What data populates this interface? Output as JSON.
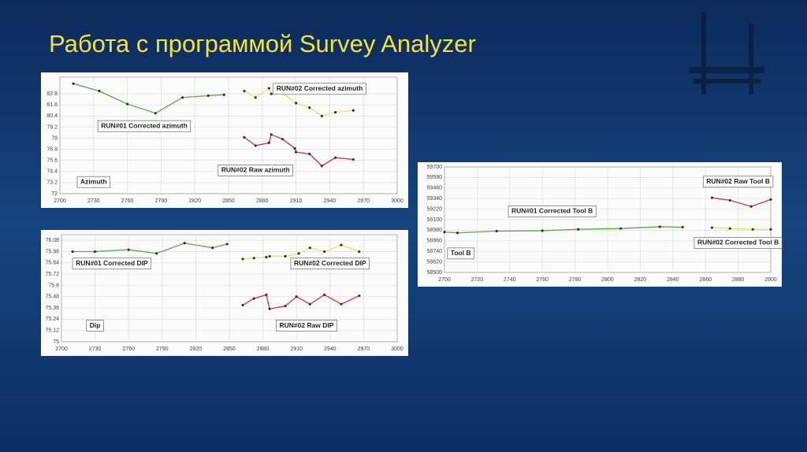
{
  "title": "Работа с программой Survey Analyzer",
  "chart_data": [
    {
      "type": "line",
      "axis_label": "Azimuth",
      "grid": true,
      "xlim": [
        2700,
        3000
      ],
      "xticks": [
        2700,
        2730,
        2760,
        2790,
        2820,
        2850,
        2880,
        2910,
        2940,
        2970,
        3000
      ],
      "ylim": [
        72,
        84.6
      ],
      "yticks": [
        72,
        73.2,
        74.4,
        75.6,
        76.8,
        78,
        79.2,
        80.4,
        81.6,
        82.8
      ],
      "series": [
        {
          "name": "RUN#01 Corrected azimuth",
          "color": "#5aa64a",
          "x": [
            2712,
            2735,
            2760,
            2785,
            2809,
            2832,
            2846
          ],
          "values": [
            83.9,
            83.1,
            81.7,
            80.7,
            82.4,
            82.6,
            82.7
          ]
        },
        {
          "name": "RUN#02 Corrected azimuth",
          "color": "#e4e466",
          "x": [
            2864,
            2874,
            2886,
            2888,
            2898,
            2910,
            2922,
            2933,
            2945,
            2961
          ],
          "values": [
            83.1,
            82.4,
            83.4,
            82.8,
            82.9,
            81.8,
            81.3,
            80.4,
            80.8,
            81.0
          ]
        },
        {
          "name": "RUN#02 Raw azimuth",
          "color": "#d03040",
          "x": [
            2864,
            2874,
            2886,
            2888,
            2898,
            2909,
            2910,
            2922,
            2933,
            2945,
            2961
          ],
          "values": [
            78.1,
            77.2,
            77.5,
            78.4,
            77.9,
            76.9,
            76.5,
            76.3,
            75.0,
            75.9,
            75.7
          ]
        }
      ]
    },
    {
      "type": "line",
      "axis_label": "Dip",
      "grid": true,
      "xlim": [
        2700,
        3000
      ],
      "xticks": [
        2700,
        2730,
        2760,
        2790,
        2820,
        2850,
        2880,
        2910,
        2940,
        2970,
        3000
      ],
      "ylim": [
        75,
        76.14
      ],
      "yticks": [
        75,
        75.12,
        75.24,
        75.36,
        75.48,
        75.6,
        75.72,
        75.84,
        75.96,
        76.08
      ],
      "series": [
        {
          "name": "RUN#01 Corrected DIP",
          "color": "#5aa64a",
          "x": [
            2710,
            2730,
            2760,
            2785,
            2810,
            2835,
            2848
          ],
          "values": [
            75.96,
            75.96,
            75.98,
            75.94,
            76.05,
            76.0,
            76.04
          ]
        },
        {
          "name": "RUN#02 Corrected DIP",
          "color": "#e4e466",
          "x": [
            2862,
            2872,
            2883,
            2886,
            2900,
            2912,
            2922,
            2935,
            2950,
            2966
          ],
          "values": [
            75.88,
            75.89,
            75.9,
            75.91,
            75.91,
            75.94,
            76.0,
            75.96,
            76.03,
            75.96
          ]
        },
        {
          "name": "RUN#02 Raw DIP",
          "color": "#d03040",
          "x": [
            2862,
            2872,
            2883,
            2886,
            2900,
            2910,
            2922,
            2935,
            2950,
            2966
          ],
          "values": [
            75.39,
            75.46,
            75.5,
            75.35,
            75.38,
            75.48,
            75.4,
            75.5,
            75.4,
            75.49
          ]
        }
      ]
    },
    {
      "type": "line",
      "axis_label": "Tool B",
      "grid": true,
      "xlim": [
        2700,
        2900
      ],
      "xticks": [
        2700,
        2720,
        2740,
        2760,
        2780,
        2800,
        2820,
        2840,
        2860,
        2880,
        2900
      ],
      "ylim": [
        58500,
        59700
      ],
      "yticks": [
        58500,
        58620,
        58740,
        58860,
        58980,
        59100,
        59220,
        59340,
        59460,
        59580,
        59700
      ],
      "series": [
        {
          "name": "RUN#01 Corrected Tool B",
          "color": "#5aa64a",
          "x": [
            2700,
            2708,
            2732,
            2760,
            2782,
            2808,
            2832,
            2846
          ],
          "values": [
            58960,
            58950,
            58970,
            58975,
            58990,
            59000,
            59020,
            59015
          ]
        },
        {
          "name": "RUN#02 Raw Tool B",
          "color": "#d03040",
          "x": [
            2864,
            2875,
            2888,
            2900
          ],
          "values": [
            59350,
            59320,
            59250,
            59330
          ]
        },
        {
          "name": "RUN#02 Corrected Tool B",
          "color": "#e4e466",
          "x": [
            2864,
            2875,
            2889,
            2900
          ],
          "values": [
            59010,
            59000,
            58990,
            58990
          ]
        }
      ]
    }
  ]
}
